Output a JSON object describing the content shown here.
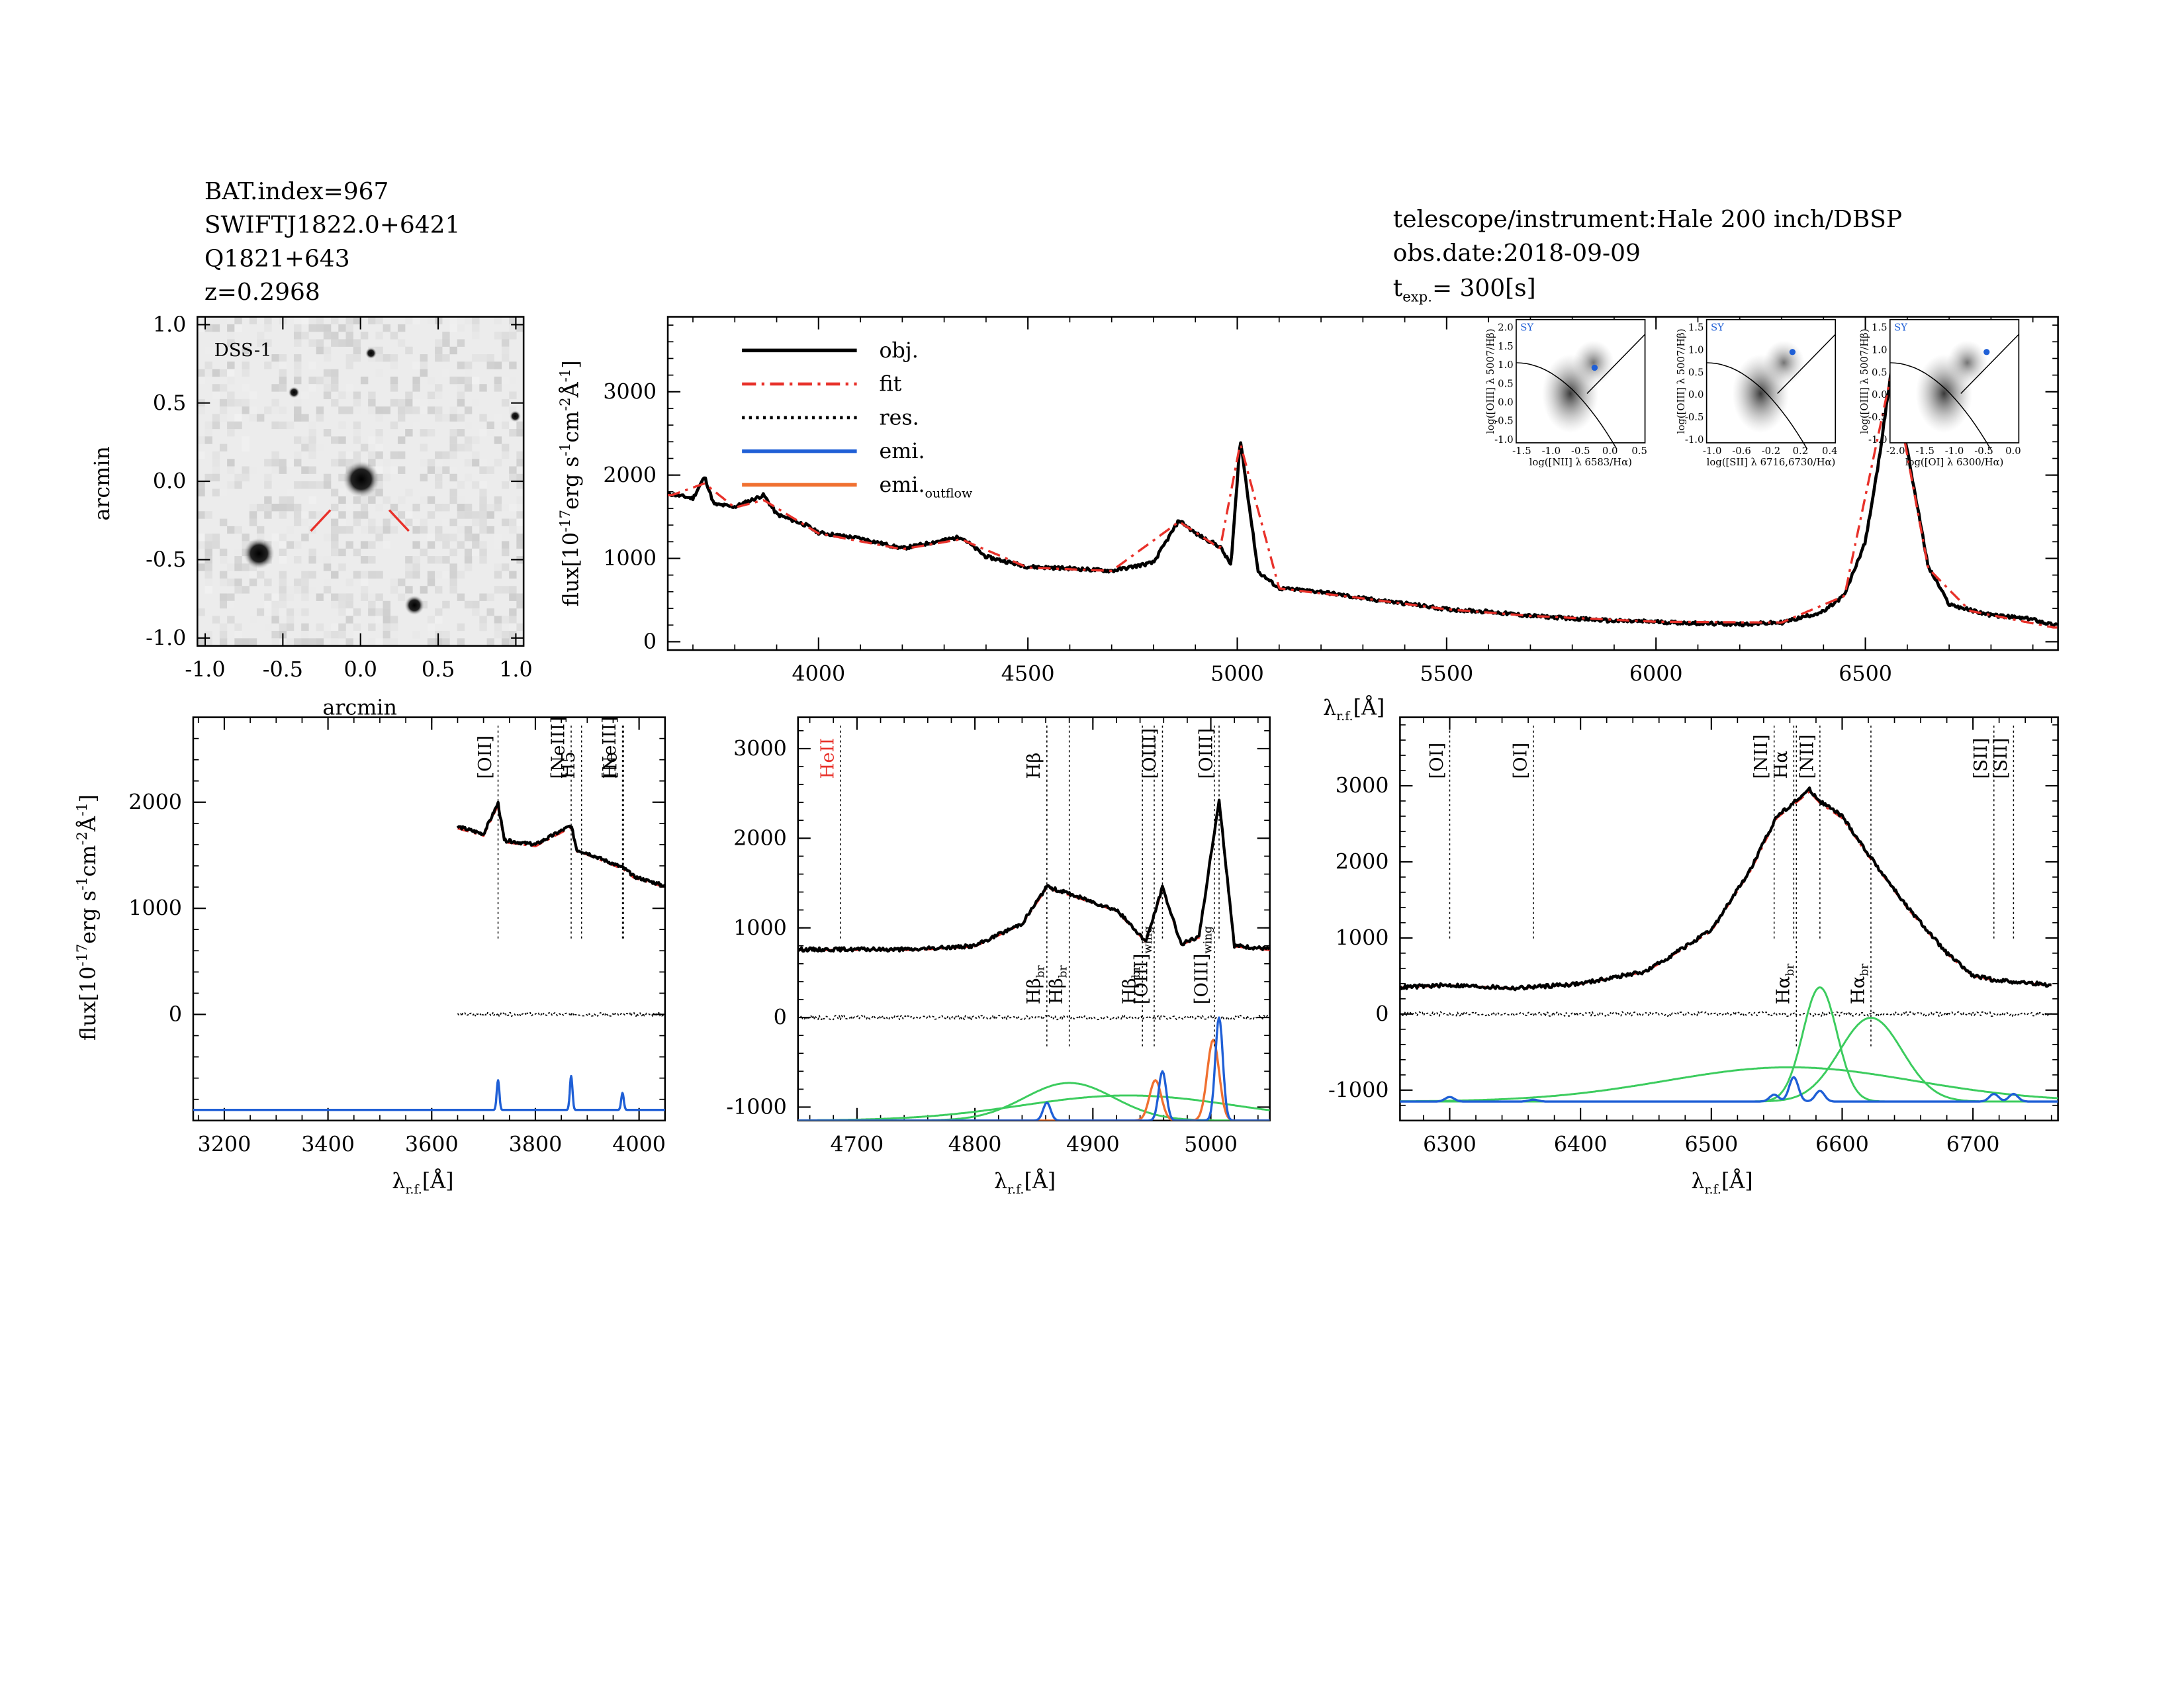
{
  "header": {
    "left_lines": [
      "BAT.index=967",
      "SWIFTJ1822.0+6421",
      "Q1821+643",
      "z=0.2968"
    ],
    "right_lines": [
      "telescope/instrument:Hale 200 inch/DBSP",
      "obs.date:2018-09-09"
    ],
    "texp_label": "t",
    "texp_sub": "exp.",
    "texp_value": "= 300[s]"
  },
  "image_panel": {
    "label": "DSS-1",
    "xlabel": "arcmin",
    "ylabel": "arcmin",
    "ticks": [
      "-1.0",
      "-0.5",
      "0.0",
      "0.5",
      "1.0"
    ]
  },
  "axis_text": {
    "flux_label": "flux[10",
    "flux_exp1": "-17",
    "flux_mid": "erg s",
    "flux_exp2": "-1",
    "flux_mid2": "cm",
    "flux_exp3": "-2",
    "flux_unit": "Å",
    "flux_exp4": "-1",
    "flux_end": "]",
    "lambda_main": "λ",
    "lambda_sub": "r.f.",
    "lambda_unit": "[Å]"
  },
  "legend": [
    {
      "label": "obj.",
      "color": "#000000",
      "style": "solid"
    },
    {
      "label": "fit",
      "color": "#e8312a",
      "style": "dashdot"
    },
    {
      "label": "res.",
      "color": "#000000",
      "style": "dotted"
    },
    {
      "label": "emi.",
      "color": "#1f5fd6",
      "style": "solid"
    },
    {
      "label": "emi.",
      "sub": "outflow",
      "color": "#f07030",
      "style": "solid"
    }
  ],
  "bpt": [
    {
      "tag": "SY",
      "xlabel": "log([NII] λ 6583/Hα)",
      "ylabel": "log([OIII] λ 5007/Hβ)",
      "xticks": [
        "-1.5",
        "-1.0",
        "-0.5",
        "0.0",
        "0.5"
      ],
      "yticks": [
        "2.0",
        "1.5",
        "1.0",
        "0.5",
        "0.0",
        "-0.5",
        "-1.0"
      ],
      "point": [
        -0.3,
        0.85
      ]
    },
    {
      "tag": "SY",
      "xlabel": "log([SII] λ 6716,6730/Hα)",
      "ylabel": "log([OIII] λ 5007/Hβ)",
      "xticks": [
        "-1.0",
        "-0.6",
        "-0.2",
        "0.2",
        "0.4"
      ],
      "yticks": [
        "1.5",
        "1.0",
        "0.5",
        "0.0",
        "-0.5",
        "-1.0"
      ],
      "point": [
        -0.1,
        1.0
      ]
    },
    {
      "tag": "SY",
      "xlabel": "log([OI] λ 6300/Hα)",
      "ylabel": "log([OIII] λ 5007/Hβ)",
      "xticks": [
        "-2.0",
        "-1.5",
        "-1.0",
        "-0.5",
        "0.0"
      ],
      "yticks": [
        "1.5",
        "1.0",
        "0.5",
        "0.0",
        "-0.5",
        "-1.0"
      ],
      "point": [
        -0.5,
        1.0
      ]
    }
  ],
  "colors": {
    "obj": "#000000",
    "fit": "#e8312a",
    "emi": "#1f5fd6",
    "outflow": "#f07030",
    "broad": "#3ccc5e"
  },
  "chart_data": [
    {
      "type": "line",
      "panel": "full spectrum",
      "xlim": [
        3640,
        6960
      ],
      "ylim": [
        -100,
        3900
      ],
      "xticks": [
        4000,
        4500,
        5000,
        5500,
        6000,
        6500
      ],
      "yticks": [
        0,
        1000,
        2000,
        3000
      ],
      "series": [
        {
          "name": "obj.",
          "x": [
            3650,
            3700,
            3728,
            3750,
            3800,
            3869,
            3900,
            3970,
            4000,
            4100,
            4200,
            4340,
            4400,
            4500,
            4600,
            4700,
            4800,
            4861,
            4900,
            4959,
            4985,
            5007,
            5050,
            5100,
            5200,
            5300,
            5400,
            5500,
            5600,
            5700,
            5800,
            5900,
            6000,
            6100,
            6200,
            6300,
            6400,
            6450,
            6500,
            6530,
            6563,
            6600,
            6650,
            6700,
            6750,
            6800,
            6900,
            6950
          ],
          "y": [
            1770,
            1720,
            1980,
            1650,
            1620,
            1760,
            1530,
            1400,
            1310,
            1240,
            1120,
            1260,
            1020,
            900,
            880,
            850,
            950,
            1460,
            1300,
            1140,
            920,
            2430,
            840,
            640,
            600,
            520,
            460,
            390,
            360,
            310,
            280,
            250,
            240,
            220,
            210,
            230,
            360,
            560,
            1200,
            2100,
            3300,
            2300,
            900,
            450,
            380,
            320,
            270,
            200
          ]
        },
        {
          "name": "fit",
          "x": [
            3650,
            3728,
            3800,
            3869,
            4000,
            4200,
            4340,
            4500,
            4700,
            4861,
            4959,
            5007,
            5100,
            5300,
            5500,
            5700,
            6000,
            6300,
            6450,
            6563,
            6650,
            6750,
            6950
          ],
          "y": [
            1760,
            1900,
            1610,
            1700,
            1300,
            1110,
            1230,
            890,
            850,
            1440,
            1120,
            2380,
            640,
            520,
            390,
            310,
            240,
            230,
            550,
            3250,
            880,
            370,
            170
          ]
        }
      ]
    },
    {
      "type": "line",
      "panel": "[OII] region",
      "xlim": [
        3140,
        4050
      ],
      "ylim": [
        -1000,
        2800
      ],
      "xticks": [
        3200,
        3400,
        3600,
        3800,
        4000
      ],
      "yticks": [
        0,
        1000,
        2000
      ],
      "annotations": [
        {
          "text": "[OII]",
          "x": 3728
        },
        {
          "text": "[NeIII]",
          "x": 3869
        },
        {
          "text": "H5",
          "x": 3889
        },
        {
          "text": "[NeIII]",
          "x": 3968
        },
        {
          "text": "He",
          "x": 3970
        }
      ],
      "series": [
        {
          "name": "obj.",
          "x": [
            3650,
            3700,
            3728,
            3740,
            3800,
            3869,
            3880,
            3900,
            3970,
            3990,
            4050
          ],
          "y": [
            1770,
            1700,
            1990,
            1640,
            1600,
            1780,
            1550,
            1520,
            1380,
            1300,
            1210
          ]
        },
        {
          "name": "emi.",
          "x": [
            3728,
            3869,
            3968
          ],
          "y": [
            280,
            320,
            160
          ]
        }
      ]
    },
    {
      "type": "line",
      "panel": "Hβ region",
      "xlim": [
        4650,
        5050
      ],
      "ylim": [
        -1150,
        3350
      ],
      "xticks": [
        4700,
        4800,
        4900,
        5000
      ],
      "yticks": [
        -1000,
        0,
        1000,
        2000,
        3000
      ],
      "annotations": [
        {
          "text": "HeII",
          "x": 4686
        },
        {
          "text": "Hβ",
          "x": 4861
        },
        {
          "text": "[OIII]",
          "x": 4959
        },
        {
          "text": "[OIII]",
          "x": 5007
        },
        {
          "text": "Hβ",
          "sub": "br",
          "x": 4861
        },
        {
          "text": "Hβ",
          "sub": "br",
          "x": 4880
        },
        {
          "text": "Hβ",
          "sub": "br",
          "x": 4942
        },
        {
          "text": "[OIII]",
          "sub": "wing",
          "x": 4952
        },
        {
          "text": "[OIII]",
          "sub": "wing",
          "x": 5003
        }
      ],
      "series": [
        {
          "name": "obj.",
          "x": [
            4650,
            4750,
            4800,
            4840,
            4861,
            4880,
            4920,
            4945,
            4959,
            4975,
            4990,
            5007,
            5020,
            5050
          ],
          "y": [
            760,
            760,
            800,
            1050,
            1460,
            1380,
            1200,
            850,
            1450,
            820,
            900,
            2430,
            800,
            760
          ]
        },
        {
          "name": "emi.",
          "x": [
            4861,
            4959,
            5007
          ],
          "y": [
            200,
            550,
            1150
          ]
        },
        {
          "name": "emi.outflow",
          "x": [
            4953,
            5002
          ],
          "y": [
            450,
            900
          ]
        }
      ]
    },
    {
      "type": "line",
      "panel": "Hα region",
      "xlim": [
        4650,
        6765
      ],
      "ylim": [
        -1400,
        3900
      ],
      "xticks": [
        6300,
        6400,
        6500,
        6600,
        6700
      ],
      "yticks": [
        -1000,
        0,
        1000,
        2000,
        3000
      ],
      "annotations": [
        {
          "text": "[OI]",
          "x": 6300
        },
        {
          "text": "[OI]",
          "x": 6364
        },
        {
          "text": "[NII]",
          "x": 6548
        },
        {
          "text": "Hα",
          "x": 6563
        },
        {
          "text": "Hα",
          "sub": "br",
          "x": 6565
        },
        {
          "text": "[NII]",
          "x": 6583
        },
        {
          "text": "Hα",
          "sub": "br",
          "x": 6622
        },
        {
          "text": "[SII]",
          "x": 6716
        },
        {
          "text": "[SII]",
          "x": 6731
        }
      ],
      "series": [
        {
          "name": "obj.",
          "x": [
            6260,
            6300,
            6350,
            6400,
            6450,
            6500,
            6530,
            6550,
            6563,
            6575,
            6583,
            6600,
            6620,
            6650,
            6680,
            6700,
            6716,
            6760
          ],
          "y": [
            350,
            380,
            340,
            400,
            560,
            1100,
            1900,
            2600,
            2780,
            2950,
            2800,
            2600,
            2100,
            1400,
            800,
            500,
            450,
            380
          ]
        }
      ]
    }
  ]
}
